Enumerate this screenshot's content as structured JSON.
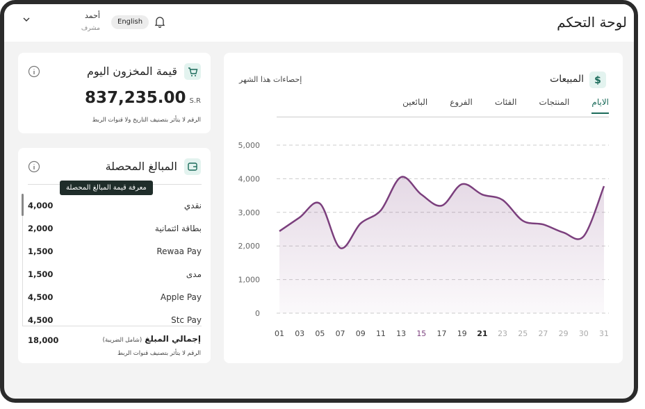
{
  "header": {
    "title": "لوحة التحكم",
    "language": "English",
    "user_name": "أحمد",
    "user_role": "مشرف"
  },
  "inventory": {
    "title": "قيمة المخزون اليوم",
    "value": "837,235.00",
    "currency": "S.R",
    "note": "الرقم لا يتأثر بتصنيف التاريخ ولا قنوات الربط"
  },
  "collected": {
    "title": "المبالغ المحصلة",
    "tooltip": "معرفة قيمة المبالغ المحصلة",
    "rows": [
      {
        "label": "نقدي",
        "amount": "4,000"
      },
      {
        "label": "بطاقة ائتمانية",
        "amount": "2,000"
      },
      {
        "label": "Rewaa Pay",
        "amount": "1,500"
      },
      {
        "label": "مدى",
        "amount": "1,500"
      },
      {
        "label": "Apple Pay",
        "amount": "4,500"
      },
      {
        "label": "Stc Pay",
        "amount": "4,500"
      }
    ],
    "total": {
      "label": "إجمالي المبلغ",
      "qualifier": "(شامل الضريبة)",
      "amount": "18,000"
    },
    "note": "الرقم لا يتأثر بتصنيف قنوات الربط"
  },
  "sales": {
    "title": "المبيعات",
    "subtitle": "إحصاءات هذا الشهر",
    "tabs": [
      "الايام",
      "المنتجات",
      "الفئات",
      "الفروع",
      "البائعين"
    ]
  },
  "chart_data": {
    "type": "area",
    "categories": [
      "01",
      "03",
      "05",
      "07",
      "09",
      "11",
      "13",
      "15",
      "17",
      "19",
      "21",
      "23",
      "25",
      "27",
      "29",
      "30",
      "31"
    ],
    "values": [
      2440,
      2850,
      3260,
      1940,
      2670,
      3060,
      4050,
      3530,
      3200,
      3840,
      3530,
      3370,
      2750,
      2640,
      2400,
      2290,
      3780
    ],
    "color": "#7b3f7d",
    "ylim": [
      0,
      5000
    ],
    "yticks": [
      0,
      {
        "value": 1000,
        "label": "1,000"
      },
      {
        "value": 2000,
        "label": "2,000"
      },
      {
        "value": 3000,
        "label": "3,000"
      },
      {
        "value": 4000,
        "label": "4,000"
      },
      {
        "value": 5000,
        "label": "5,000"
      }
    ],
    "grid": true
  }
}
